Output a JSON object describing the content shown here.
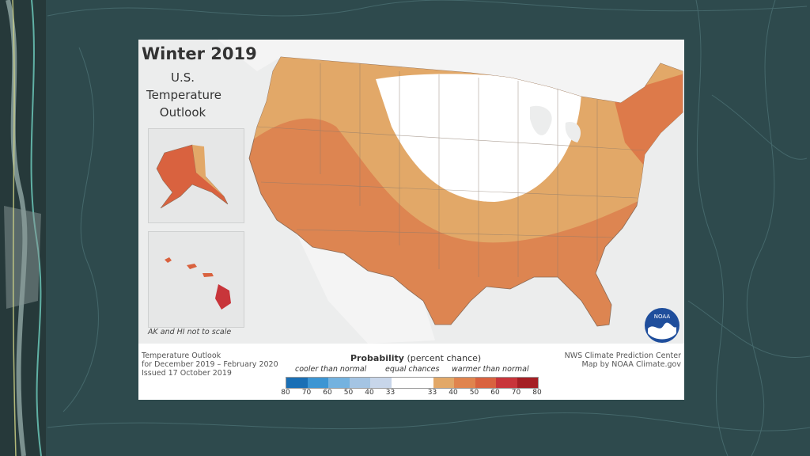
{
  "map": {
    "title": "Winter 2019",
    "subtitle_line1": "U.S.",
    "subtitle_line2": "Temperature",
    "subtitle_line3": "Outlook",
    "scale_note": "AK and HI not to scale"
  },
  "legend": {
    "left_line1": "Temperature Outlook",
    "left_line2": "for December 2019 – February 2020",
    "left_line3": "Issued 17 October 2019",
    "prob_bold": "Probability",
    "prob_rest": " (percent chance)",
    "cooler_label": "cooler than normal",
    "equal_label": "equal chances",
    "warmer_label": "warmer than normal",
    "ticks": [
      "80",
      "70",
      "60",
      "50",
      "40",
      "33",
      "33",
      "40",
      "50",
      "60",
      "70",
      "80"
    ],
    "colors": [
      "#1a6fb5",
      "#3c95d3",
      "#74b2df",
      "#a4c4e3",
      "#c8d6ea",
      "#ffffff",
      "#ffffff",
      "#e2a868",
      "#e0844e",
      "#d9623f",
      "#c8353a",
      "#a51f24"
    ],
    "right_line1": "NWS Climate Prediction Center",
    "right_line2": "Map by NOAA Climate.gov"
  },
  "logo": {
    "text": "NOAA"
  }
}
